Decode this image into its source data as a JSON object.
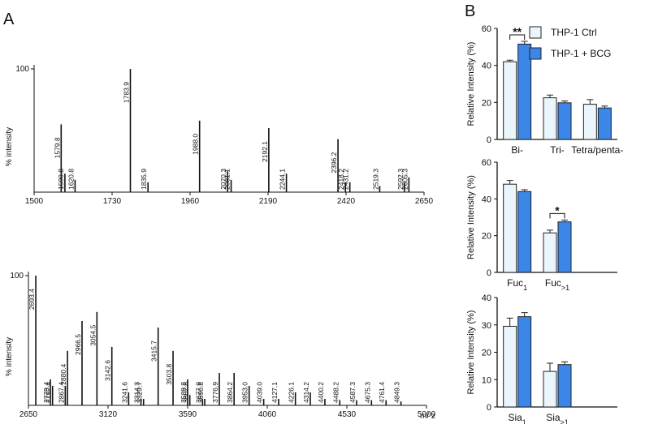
{
  "panel_labels": [
    "A",
    "B"
  ],
  "chart_data": [
    {
      "type": "stem",
      "ylabel": "% intensity",
      "color": "#111111",
      "x": [
        1579.8,
        1590.8,
        1620.8,
        1783.9,
        1835.9,
        1988.0,
        2070.3,
        2081.1,
        2192.1,
        2244.1,
        2396.2,
        2418.2,
        2431.2,
        2519.3,
        2592.3,
        2605.3
      ],
      "values": [
        55,
        15,
        10,
        100,
        8,
        58,
        17,
        10,
        52,
        15,
        43,
        8,
        8,
        5,
        8,
        12
      ],
      "peak_labels": [
        "1579.8",
        "1590.8",
        "1620.8",
        "1783.9",
        "1835.9",
        "1988.0",
        "2070.3",
        "2081.1",
        "2192.1",
        "2244.1",
        "2396.2",
        "2418.2",
        "2431.2",
        "2519.3",
        "2592.3",
        "2605.3"
      ],
      "xlim": [
        1500,
        2650
      ],
      "xticks": [
        1500,
        1730,
        1960,
        2190,
        2420,
        2650
      ],
      "ylim": [
        0,
        100
      ],
      "yticks": [
        100
      ]
    },
    {
      "type": "stem",
      "ylabel": "% intensity",
      "xlabel": "m/ z",
      "color": "#111111",
      "x": [
        2693.4,
        2779.4,
        2792.4,
        2867.4,
        2880.4,
        2966.5,
        3054.5,
        3142.6,
        3241.6,
        3314.3,
        3329.7,
        3415.7,
        3503.8,
        3589.8,
        3602.8,
        3677.9,
        3690.8,
        3776.9,
        3864.2,
        3953.0,
        4039.0,
        4127.1,
        4226.1,
        4314.2,
        4400.2,
        4488.2,
        4587.3,
        4675.3,
        4761.4,
        4849.3
      ],
      "values": [
        100,
        20,
        15,
        15,
        42,
        65,
        72,
        45,
        10,
        5,
        5,
        60,
        42,
        20,
        8,
        5,
        5,
        25,
        25,
        15,
        5,
        5,
        10,
        10,
        5,
        4,
        4,
        4,
        4,
        3
      ],
      "peak_labels": [
        "2693.4",
        "2779.4",
        "2792.4",
        "2867.4",
        "2880.4",
        "2966.5",
        "3054.5",
        "3142.6",
        "3241.6",
        "3314.3",
        "3329.7",
        "3415.7",
        "3503.8",
        "3589.8",
        "3602.8",
        "3677.9",
        "3690.8",
        "3776.9",
        "3864.2",
        "3953.0",
        "4039.0",
        "4127.1",
        "4226.1",
        "4314.2",
        "4400.2",
        "4488.2",
        "4587.3",
        "4675.3",
        "4761.4",
        "4849.3"
      ],
      "xlim": [
        2650,
        5000
      ],
      "xticks": [
        2650,
        3120,
        3590,
        4060,
        4530,
        5000
      ],
      "ylim": [
        0,
        100
      ],
      "yticks": [
        100
      ]
    },
    {
      "type": "bar",
      "ylabel": "Relative Intensity (%)",
      "categories": [
        "Bi-",
        "Tri-",
        "Tetra/penta-"
      ],
      "series": [
        {
          "name": "THP-1 Ctrl",
          "color": "#eaf6fc",
          "values": [
            42,
            22.5,
            19
          ],
          "errors": [
            0.8,
            1.5,
            2.5
          ]
        },
        {
          "name": "THP-1 + BCG",
          "color": "#3b86e6",
          "values": [
            51.5,
            19.8,
            17
          ],
          "errors": [
            1.5,
            1,
            1
          ]
        }
      ],
      "ylim": [
        0,
        60
      ],
      "yticks": [
        0,
        20,
        40,
        60
      ],
      "legend": "upper right",
      "annotations": [
        {
          "text": "**",
          "category": "Bi-"
        }
      ]
    },
    {
      "type": "bar",
      "ylabel": "Relative Intensity (%)",
      "categories": [
        "Fuc1",
        "Fuc>1"
      ],
      "series": [
        {
          "color": "#eaf6fc",
          "values": [
            48,
            21.5
          ],
          "errors": [
            2,
            1.5
          ]
        },
        {
          "color": "#3b86e6",
          "values": [
            44,
            27.5
          ],
          "errors": [
            1,
            1
          ]
        }
      ],
      "ylim": [
        0,
        60
      ],
      "yticks": [
        0,
        20,
        40,
        60
      ],
      "annotations": [
        {
          "text": "*",
          "category": "Fuc>1"
        }
      ]
    },
    {
      "type": "bar",
      "ylabel": "Relative Intensity (%)",
      "categories": [
        "Sia1",
        "Sia>1"
      ],
      "series": [
        {
          "color": "#eaf6fc",
          "values": [
            29.5,
            13
          ],
          "errors": [
            3,
            3
          ]
        },
        {
          "color": "#3b86e6",
          "values": [
            33,
            15.5
          ],
          "errors": [
            1.5,
            1
          ]
        }
      ],
      "ylim": [
        0,
        40
      ],
      "yticks": [
        0,
        10,
        20,
        30,
        40
      ]
    }
  ]
}
